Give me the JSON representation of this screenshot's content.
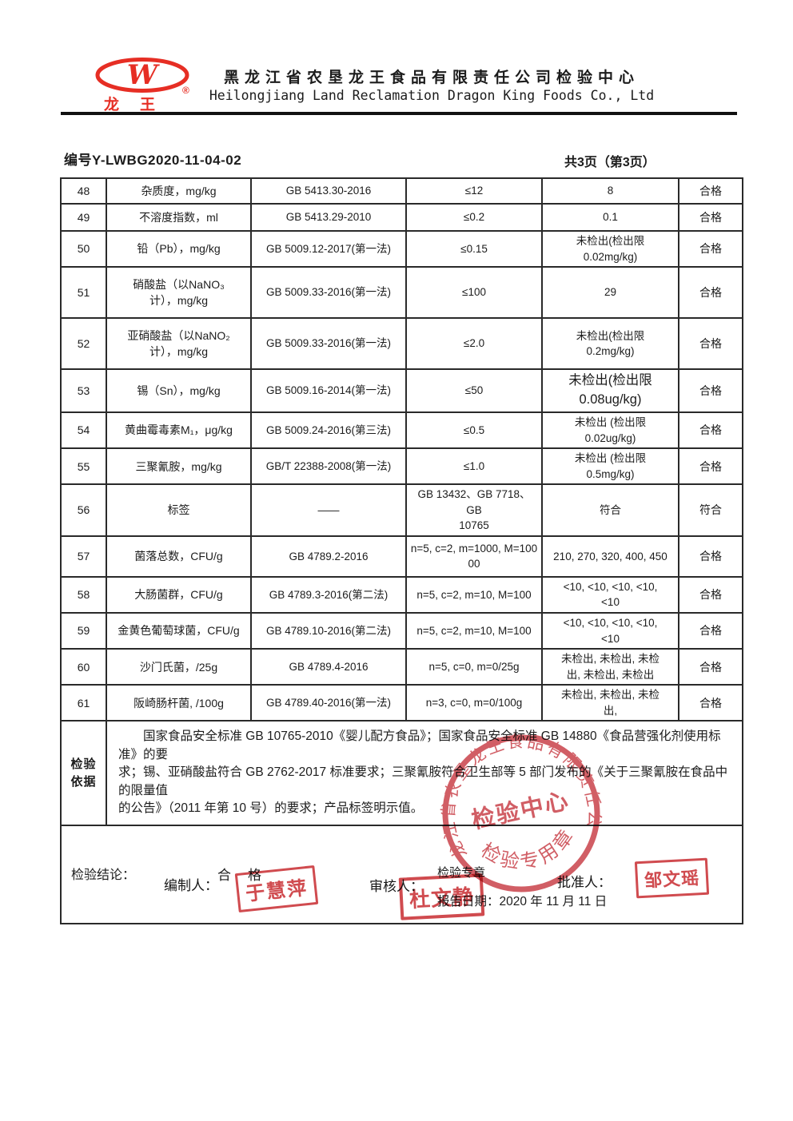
{
  "header": {
    "logo_letter": "W",
    "logo_brand": "龙王",
    "registered_mark": "®",
    "title_cn": "黑龙江省农垦龙王食品有限责任公司检验中心",
    "title_en": "Heilongjiang Land Reclamation Dragon King Foods Co., Ltd"
  },
  "meta": {
    "report_no": "编号Y-LWBG2020-11-04-02",
    "pages": "共3页（第3页）"
  },
  "table": {
    "rows": [
      {
        "no": "48",
        "item": "杂质度，mg/kg",
        "method": "GB 5413.30-2016",
        "limit": "≤12",
        "result": "8",
        "conclusion": "合格"
      },
      {
        "no": "49",
        "item": "不溶度指数，ml",
        "method": "GB 5413.29-2010",
        "limit": "≤0.2",
        "result": "0.1",
        "conclusion": "合格"
      },
      {
        "no": "50",
        "item": "铅（Pb），mg/kg",
        "method": "GB 5009.12-2017(第一法)",
        "limit": "≤0.15",
        "result": "未检出(检出限\n0.02mg/kg)",
        "conclusion": "合格"
      },
      {
        "no": "51",
        "item": "硝酸盐（以NaNO₃\n计），mg/kg",
        "method": "GB 5009.33-2016(第一法)",
        "limit": "≤100",
        "result": "29",
        "conclusion": "合格"
      },
      {
        "no": "52",
        "item": "亚硝酸盐（以NaNO₂\n计），mg/kg",
        "method": "GB 5009.33-2016(第一法)",
        "limit": "≤2.0",
        "result": "未检出(检出限\n0.2mg/kg)",
        "conclusion": "合格"
      },
      {
        "no": "53",
        "item": "锡（Sn），mg/kg",
        "method": "GB 5009.16-2014(第一法)",
        "limit": "≤50",
        "result": "未检出(检出限\n0.08ug/kg)",
        "conclusion": "合格"
      },
      {
        "no": "54",
        "item": "黄曲霉毒素M₁，μg/kg",
        "method": "GB 5009.24-2016(第三法)",
        "limit": "≤0.5",
        "result": "未检出 (检出限\n0.02ug/kg)",
        "conclusion": "合格"
      },
      {
        "no": "55",
        "item": "三聚氰胺，mg/kg",
        "method": "GB/T 22388-2008(第一法)",
        "limit": "≤1.0",
        "result": "未检出  (检出限\n0.5mg/kg)",
        "conclusion": "合格"
      },
      {
        "no": "56",
        "item": "标签",
        "method": "——",
        "limit": "GB 13432、GB 7718、GB\n10765",
        "result": "符合",
        "conclusion": "符合"
      },
      {
        "no": "57",
        "item": "菌落总数，CFU/g",
        "method": "GB 4789.2-2016",
        "limit": "n=5, c=2, m=1000, M=100\n00",
        "result": "210, 270, 320, 400, 450",
        "conclusion": "合格"
      },
      {
        "no": "58",
        "item": "大肠菌群，CFU/g",
        "method": "GB 4789.3-2016(第二法)",
        "limit": "n=5, c=2, m=10, M=100",
        "result": "<10, <10, <10, <10,\n<10",
        "conclusion": "合格"
      },
      {
        "no": "59",
        "item": "金黄色葡萄球菌，CFU/g",
        "method": "GB 4789.10-2016(第二法)",
        "limit": "n=5, c=2, m=10, M=100",
        "result": "<10, <10, <10, <10,\n<10",
        "conclusion": "合格"
      },
      {
        "no": "60",
        "item": "沙门氏菌，/25g",
        "method": "GB 4789.4-2016",
        "limit": "n=5, c=0, m=0/25g",
        "result": "未检出, 未检出, 未检\n出, 未检出, 未检出",
        "conclusion": "合格"
      },
      {
        "no": "61",
        "item": "阪崎肠杆菌, /100g",
        "method": "GB 4789.40-2016(第一法)",
        "limit": "n=3, c=0, m=0/100g",
        "result": "未检出, 未检出, 未检\n出,",
        "conclusion": "合格"
      }
    ],
    "basis": {
      "label": "检验\n依据",
      "text": "国家食品安全标准 GB 10765-2010《婴儿配方食品》；国家食品安全标准 GB 14880《食品营强化剂使用标准》的要\n求；锡、亚硝酸盐符合 GB 2762-2017 标准要求；三聚氰胺符合卫生部等 5 部门发布的《关于三聚氰胺在食品中的限量值\n的公告》（2011 年第 10 号）的要求；产品标签明示值。"
    },
    "conclusion": {
      "label": "检验结论：",
      "value": "合　格",
      "seal_label": "检验专章",
      "report_date": "报告日期：2020 年 11 月 11 日"
    }
  },
  "signatures": {
    "prepared_label": "编制人：",
    "prepared_stamp": "于慧萍",
    "reviewed_label": "审核人：",
    "reviewed_stamp": "杜文静",
    "approved_label": "批准人：",
    "approved_stamp": "邹文瑶"
  },
  "seal": {
    "company_arc": "黑龙江省农垦龙王食品有限责任公司",
    "center_text": "检验中心",
    "bottom_arc": "检验专用章"
  },
  "colors": {
    "logo_red": "#e62e24",
    "seal_red": "#c9424a",
    "stamp_red": "#cc3b40",
    "text_black": "#1c1c1c"
  }
}
